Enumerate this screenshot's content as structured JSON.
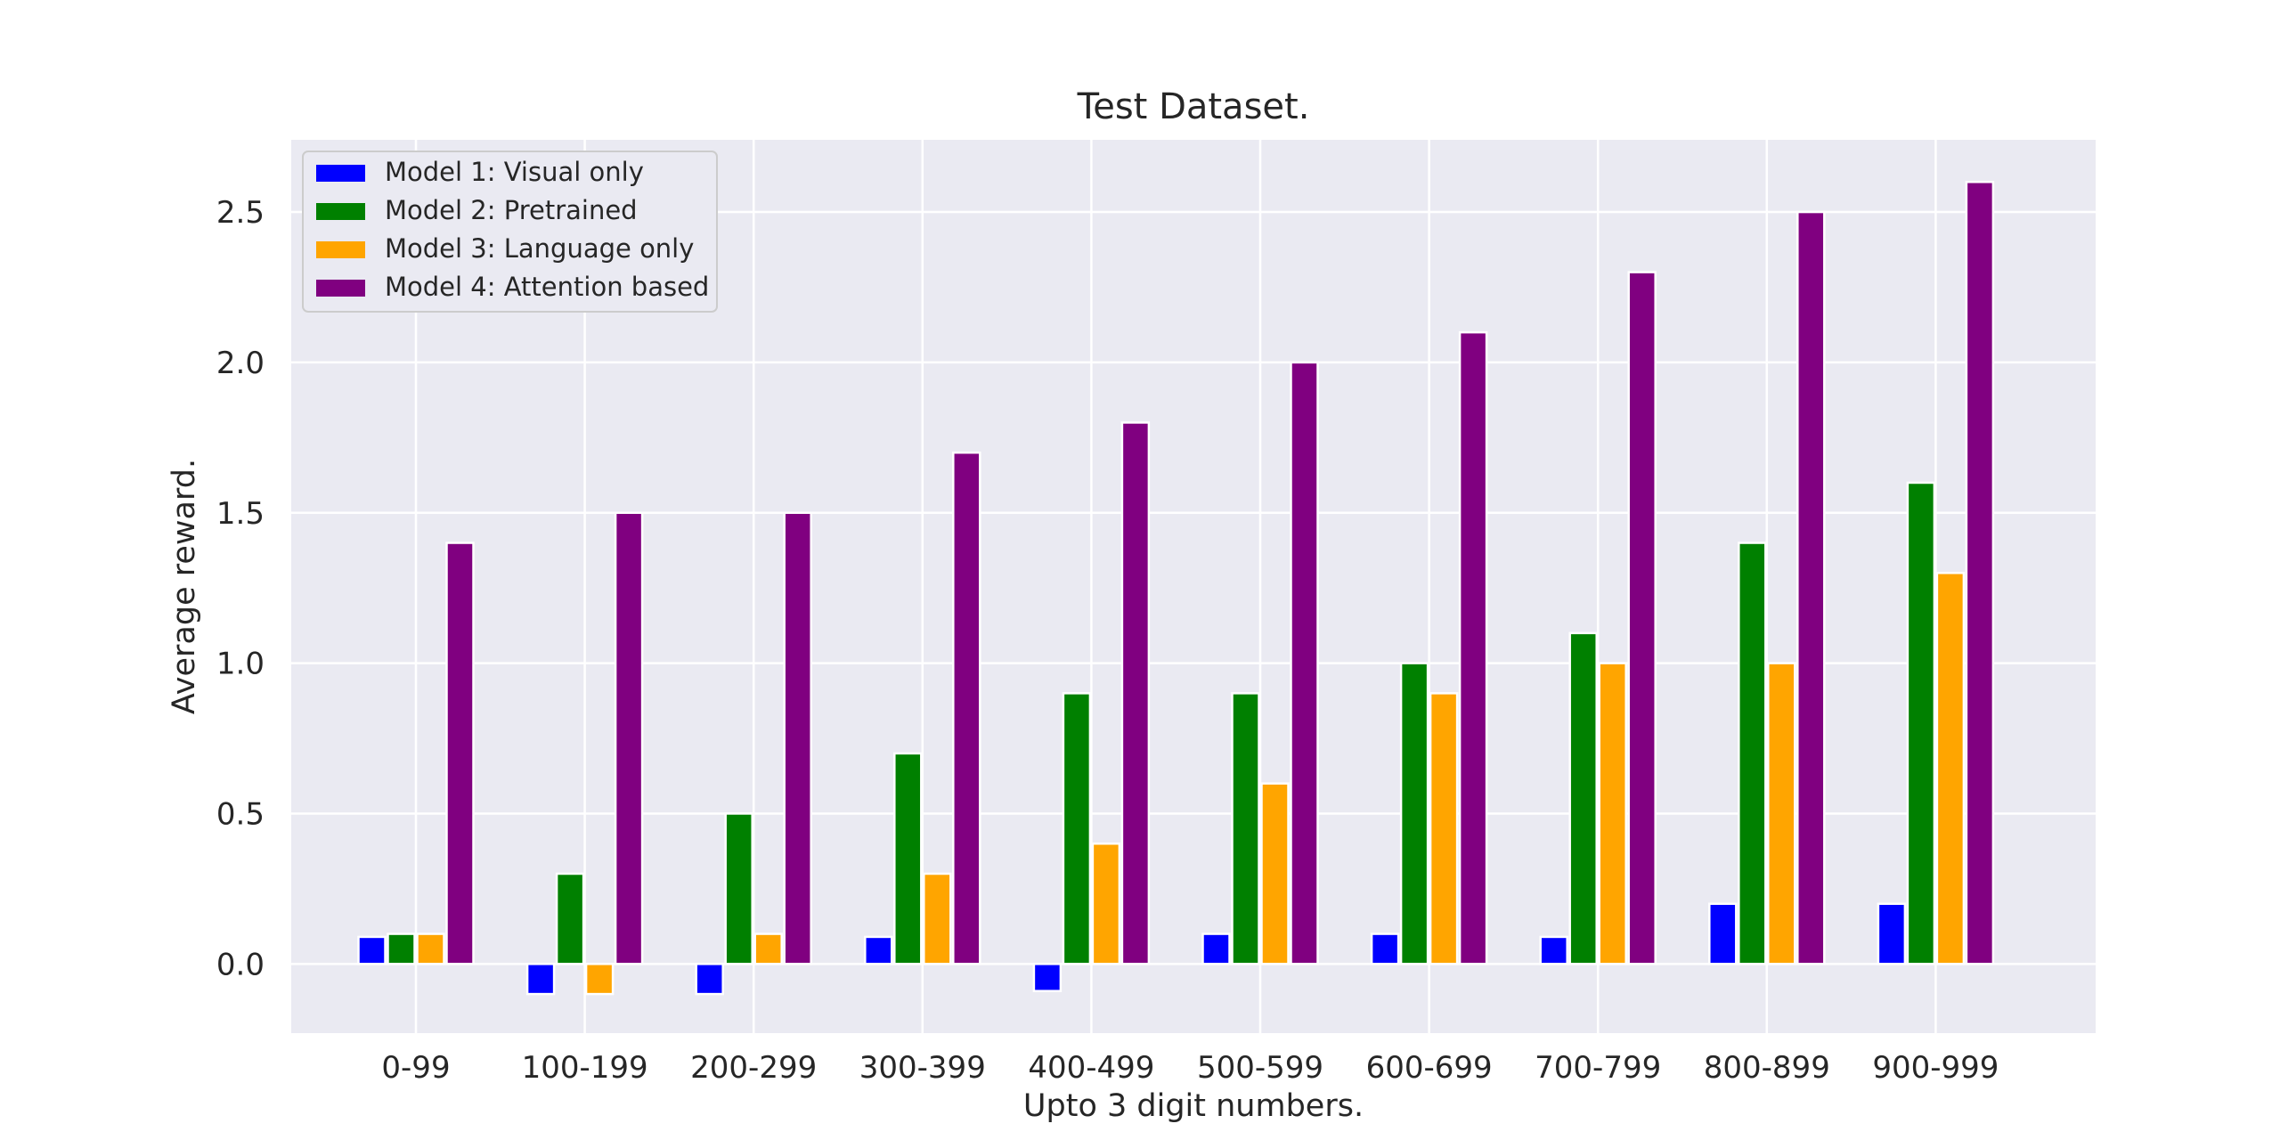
{
  "chart_data": {
    "type": "bar",
    "title": "Test Dataset.",
    "xlabel": "Upto 3 digit numbers.",
    "ylabel": "Average reward.",
    "categories": [
      "0-99",
      "100-199",
      "200-299",
      "300-399",
      "400-499",
      "500-599",
      "600-699",
      "700-799",
      "800-899",
      "900-999"
    ],
    "ylim": [
      -0.23,
      2.74
    ],
    "yticks": [
      0.0,
      0.5,
      1.0,
      1.5,
      2.0,
      2.5
    ],
    "ytick_labels": [
      "0.0",
      "0.5",
      "1.0",
      "1.5",
      "2.0",
      "2.5"
    ],
    "grid": true,
    "legend_position": "top-left",
    "series": [
      {
        "name": "Model 1: Visual only",
        "color": "#0000ff",
        "values": [
          0.09,
          -0.1,
          -0.1,
          0.09,
          -0.09,
          0.1,
          0.1,
          0.09,
          0.2,
          0.2
        ]
      },
      {
        "name": "Model 2: Pretrained",
        "color": "#008000",
        "values": [
          0.1,
          0.3,
          0.5,
          0.7,
          0.9,
          0.9,
          1.0,
          1.1,
          1.4,
          1.6
        ]
      },
      {
        "name": "Model 3: Language only",
        "color": "#ffa500",
        "values": [
          0.1,
          -0.1,
          0.1,
          0.3,
          0.4,
          0.6,
          0.9,
          1.0,
          1.0,
          1.3
        ]
      },
      {
        "name": "Model 4: Attention based",
        "color": "#800080",
        "values": [
          1.4,
          1.5,
          1.5,
          1.7,
          1.8,
          2.0,
          2.1,
          2.3,
          2.5,
          2.6
        ]
      }
    ]
  }
}
